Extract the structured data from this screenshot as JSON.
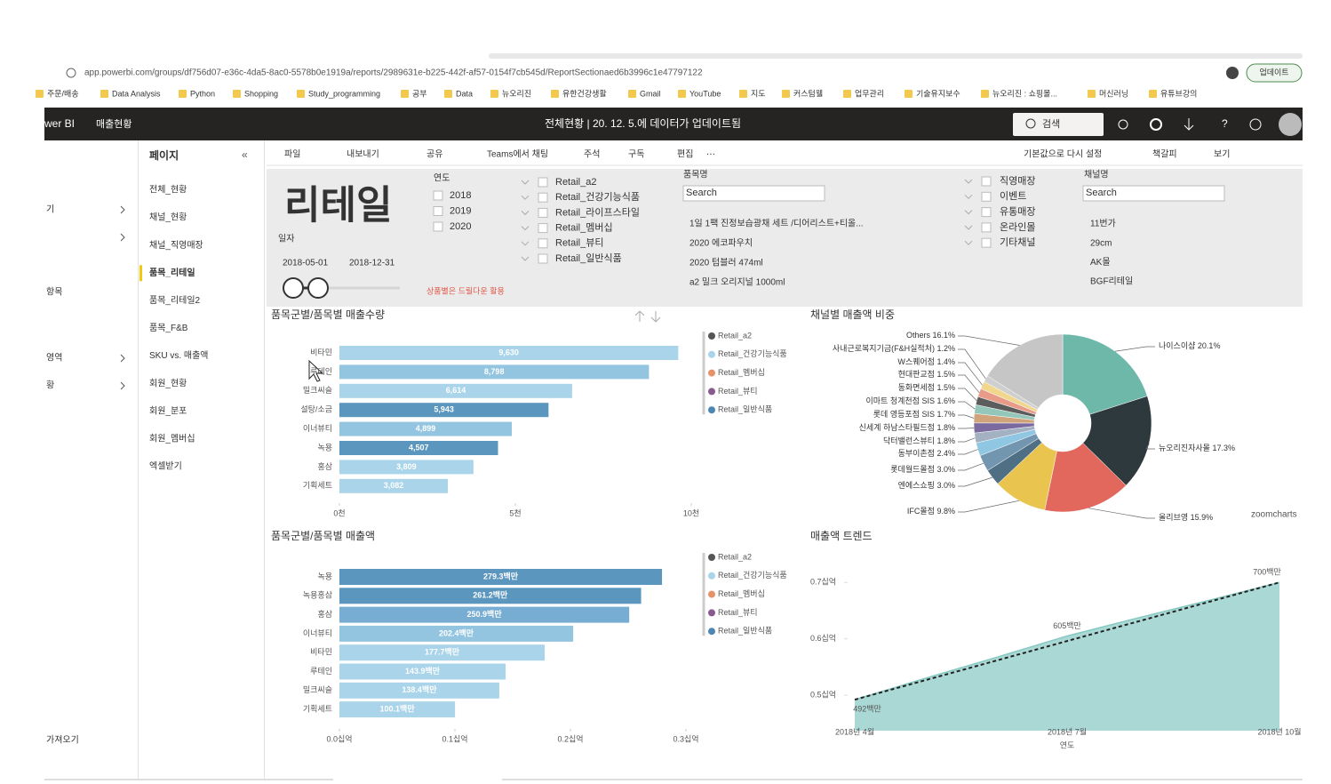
{
  "browser": {
    "url": "app.powerbi.com/groups/df756d07-e36c-4da5-8ac0-5578b0e1919a/reports/2989631e-b225-442f-af57-0154f7cb545d/ReportSectionaed6b3996c1e47797122",
    "update_button": "업데이트",
    "bookmarks": [
      "주문/배송",
      "Data Analysis",
      "Python",
      "Shopping",
      "Study_programming",
      "공부",
      "Data",
      "뉴오리진",
      "유한건강생활",
      "Gmail",
      "YouTube",
      "지도",
      "커스텀웰",
      "업무관리",
      "기술유지보수",
      "뉴오리진 : 쇼핑몰...",
      "머신러닝",
      "유튜브강의"
    ]
  },
  "app_bar": {
    "brand": "wer BI",
    "workspace": "매출현황",
    "status": "전체현황 | 20. 12. 5.에 데이터가 업데이트됨",
    "search": "검색"
  },
  "left_nav": [
    "기",
    "항목",
    "영역",
    "황",
    "가져오기"
  ],
  "pages": {
    "title": "페이지",
    "items": [
      {
        "label": "전체_현황"
      },
      {
        "label": "채널_현황"
      },
      {
        "label": "채널_직영매장"
      },
      {
        "label": "품목_리테일",
        "selected": true
      },
      {
        "label": "품목_리테일2"
      },
      {
        "label": "품목_F&B"
      },
      {
        "label": "SKU vs. 매출액"
      },
      {
        "label": "회원_현황"
      },
      {
        "label": "회원_분포"
      },
      {
        "label": "회원_멤버십"
      },
      {
        "label": "엑셀받기"
      }
    ]
  },
  "toolbar": {
    "left": [
      "파일",
      "내보내기",
      "공유",
      "Teams에서 채팅",
      "주석",
      "구독",
      "편집",
      "⋯"
    ],
    "right": [
      "기본값으로 다시 설정",
      "책갈피",
      "보기"
    ]
  },
  "filters": {
    "title": "리테일",
    "date_label": "일자",
    "date_from": "2018-05-01",
    "date_to": "2018-12-31",
    "note": "상품별은 드릴다운 활용",
    "year_label": "연도",
    "years": [
      "2018",
      "2019",
      "2020"
    ],
    "categories": [
      "Retail_a2",
      "Retail_건강기능식품",
      "Retail_라이프스타일",
      "Retail_멤버십",
      "Retail_뷰티",
      "Retail_일반식품"
    ],
    "product_label": "품목명",
    "product_search": "Search",
    "products": [
      "1일 1팩 진정보습광채 세트 /디어리스트+티올...",
      "2020 에코파우치",
      "2020 텀블러 474ml",
      "a2 밀크 오리지널 1000ml"
    ],
    "channel_types": [
      "직영매장",
      "이벤트",
      "유통매장",
      "온라인몰",
      "기타채널"
    ],
    "channel_label": "채널명",
    "channel_search": "Search",
    "channels": [
      "11번가",
      "29cm",
      "AK몰",
      "BGF리테일"
    ]
  },
  "chart_data": [
    {
      "type": "bar",
      "horizontal": true,
      "title": "품목군별/품목별 매출수량",
      "categories": [
        "비타민",
        "루테인",
        "밀크씨슬",
        "설탕/소금",
        "이너뷰티",
        "녹용",
        "홍삼",
        "기획세트"
      ],
      "values": [
        9630,
        8798,
        6614,
        5943,
        4899,
        4507,
        3809,
        3082
      ],
      "value_labels": [
        "9,630",
        "8,798",
        "6,614",
        "5,943",
        "4,899",
        "4,507",
        "3,809",
        "3,082"
      ],
      "colors": [
        "#a9d4ea",
        "#93c5e1",
        "#a9d4ea",
        "#5b96bf",
        "#93c5e1",
        "#5b96bf",
        "#a9d4ea",
        "#a9d4ea"
      ],
      "xlim": [
        0,
        10000
      ],
      "xticks": [
        {
          "value": 0,
          "label": "0천"
        },
        {
          "value": 5000,
          "label": "5천"
        },
        {
          "value": 10000,
          "label": "10천"
        }
      ],
      "legend": [
        {
          "name": "Retail_a2",
          "color": "#555555"
        },
        {
          "name": "Retail_건강기능식품",
          "color": "#a9d4ea"
        },
        {
          "name": "Retail_멤버십",
          "color": "#e8926a"
        },
        {
          "name": "Retail_뷰티",
          "color": "#8a5a8e"
        },
        {
          "name": "Retail_일반식품",
          "color": "#4b86b4"
        }
      ]
    },
    {
      "type": "bar",
      "horizontal": true,
      "title": "품목군별/품목별 매출액",
      "categories": [
        "녹용",
        "녹용홍삼",
        "홍삼",
        "이너뷰티",
        "비타민",
        "루테인",
        "밀크씨슬",
        "기획세트"
      ],
      "values": [
        0.2793,
        0.2612,
        0.2509,
        0.2024,
        0.1777,
        0.1439,
        0.1384,
        0.1001
      ],
      "value_labels": [
        "279.3백만",
        "261.2백만",
        "250.9백만",
        "202.4백만",
        "177.7백만",
        "143.9백만",
        "138.4백만",
        "100.1백만"
      ],
      "colors": [
        "#5b96bf",
        "#5b96bf",
        "#77add2",
        "#93c5e1",
        "#a9d4ea",
        "#a9d4ea",
        "#a9d4ea",
        "#a9d4ea"
      ],
      "xlim": [
        0,
        0.3
      ],
      "xticks": [
        {
          "value": 0,
          "label": "0.0십억"
        },
        {
          "value": 0.1,
          "label": "0.1십억"
        },
        {
          "value": 0.2,
          "label": "0.2십억"
        },
        {
          "value": 0.3,
          "label": "0.3십억"
        }
      ],
      "legend": [
        {
          "name": "Retail_a2",
          "color": "#555555"
        },
        {
          "name": "Retail_건강기능식품",
          "color": "#a9d4ea"
        },
        {
          "name": "Retail_멤버십",
          "color": "#e8926a"
        },
        {
          "name": "Retail_뷰티",
          "color": "#8a5a8e"
        },
        {
          "name": "Retail_일반식품",
          "color": "#4b86b4"
        }
      ]
    },
    {
      "type": "pie",
      "donut": true,
      "title": "채널별 매출액 비중",
      "watermark": "zoomcharts",
      "categories": [
        "나이스이샵",
        "뉴오리진자사몰",
        "올리브영",
        "IFC몰점",
        "엔에스쇼핑",
        "롯데월드몰점",
        "동부이촌점",
        "닥터밸런스뷰티",
        "신세계 하남스타필드점",
        "롯데 영등포점 SIS",
        "이마트 청계천점 SIS",
        "동화면세점",
        "현대판교점",
        "W스퀘어점",
        "사내근로복지기금(F&H실적처)",
        "Others"
      ],
      "values": [
        20.1,
        17.3,
        15.9,
        9.8,
        3.0,
        3.0,
        2.4,
        1.8,
        1.8,
        1.7,
        1.6,
        1.5,
        1.5,
        1.4,
        1.2,
        16.1
      ],
      "value_labels": [
        "20.1%",
        "17.3%",
        "15.9%",
        "9.8%",
        "3.0%",
        "3.0%",
        "2.4%",
        "1.8%",
        "1.8%",
        "1.7%",
        "1.6%",
        "1.5%",
        "1.5%",
        "1.4%",
        "1.2%",
        "16.1%"
      ],
      "colors": [
        "#6db8a9",
        "#2e393e",
        "#e2675c",
        "#e9c54f",
        "#4f6f84",
        "#7295b0",
        "#8fc6e2",
        "#a3b1c2",
        "#7a6a9f",
        "#d0a37b",
        "#94c7b9",
        "#5c5c5c",
        "#e89b89",
        "#f0d78d",
        "#cfcfcf",
        "#c6c6c6"
      ]
    },
    {
      "type": "area",
      "title": "매출액 트렌드",
      "xlabel": "연도",
      "categories": [
        "2018년 4월",
        null,
        null,
        "2018년 7월",
        null,
        null,
        "2018년 10월"
      ],
      "values": [
        0.492,
        0.53,
        0.567,
        0.605,
        0.637,
        0.668,
        0.7
      ],
      "value_labels": [
        "492백만",
        null,
        null,
        "605백만",
        null,
        null,
        "700백만"
      ],
      "color": "#aad9d5",
      "trend": true,
      "ylim": [
        0.437,
        0.724
      ],
      "yticks": [
        {
          "value": 0.5,
          "label": "0.5십억"
        },
        {
          "value": 0.6,
          "label": "0.6십억"
        },
        {
          "value": 0.7,
          "label": "0.7십억"
        }
      ]
    }
  ]
}
